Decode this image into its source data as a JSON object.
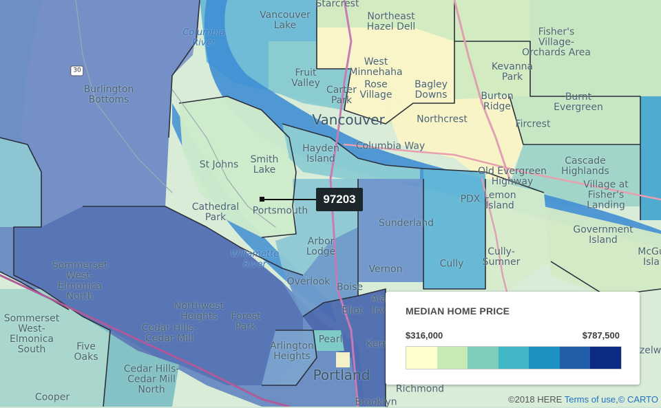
{
  "tooltip": {
    "zip": "97203"
  },
  "legend": {
    "title": "MEDIAN HOME PRICE",
    "min_label": "$316,000",
    "max_label": "$787,500",
    "colors": [
      "#ffffcc",
      "#c7e9b4",
      "#7fcdbb",
      "#41b6c4",
      "#1d91c0",
      "#225ea8",
      "#0c2c84"
    ]
  },
  "attribution": {
    "copyright": "©2018 HERE",
    "terms_label": "Terms of use",
    "separator": ",",
    "carto_label": "© CARTO"
  },
  "labels": [
    {
      "text": "Starcrest",
      "type": "place"
    },
    {
      "text": "Northeast\nHazel Dell",
      "type": "place"
    },
    {
      "text": "Vancouver\nLake",
      "type": "place"
    },
    {
      "text": "Columbia\nRiver",
      "type": "water"
    },
    {
      "text": "Fisher's\nVillage-\nOrchards Area",
      "type": "place"
    },
    {
      "text": "30",
      "type": "shield"
    },
    {
      "text": "West\nMinnehaha",
      "type": "place"
    },
    {
      "text": "Kevanna\nPark",
      "type": "place"
    },
    {
      "text": "Fruit\nValley",
      "type": "place"
    },
    {
      "text": "Rose\nVillage",
      "type": "place"
    },
    {
      "text": "Bagley\nDowns",
      "type": "place"
    },
    {
      "text": "Carter\nPark",
      "type": "place"
    },
    {
      "text": "Burton\nRidge",
      "type": "place"
    },
    {
      "text": "Burnt\nEvergreen",
      "type": "place"
    },
    {
      "text": "Burlington\nBottoms",
      "type": "place"
    },
    {
      "text": "Vancouver",
      "type": "city"
    },
    {
      "text": "Northcrest",
      "type": "place"
    },
    {
      "text": "Fircrest",
      "type": "place"
    },
    {
      "text": "Columbia Way",
      "type": "place"
    },
    {
      "text": "Hayden\nIsland",
      "type": "place"
    },
    {
      "text": "Cascade\nHighlands",
      "type": "place"
    },
    {
      "text": "St Johns",
      "type": "place"
    },
    {
      "text": "Smith\nLake",
      "type": "place"
    },
    {
      "text": "Old Evergreen\nHighway",
      "type": "place"
    },
    {
      "text": "Village at\nFisher's\nLanding",
      "type": "place"
    },
    {
      "text": "PDX",
      "type": "place"
    },
    {
      "text": "Lemon\nIsland",
      "type": "place"
    },
    {
      "text": "Cathedral\nPark",
      "type": "place"
    },
    {
      "text": "Portsmouth",
      "type": "place"
    },
    {
      "text": "Sunderland",
      "type": "place"
    },
    {
      "text": "Government\nIsland",
      "type": "place"
    },
    {
      "text": "McGu\nIsla",
      "type": "place"
    },
    {
      "text": "Arbor\nLodge",
      "type": "place"
    },
    {
      "text": "Willamette\nRiver",
      "type": "water"
    },
    {
      "text": "Cully",
      "type": "place"
    },
    {
      "text": "Cully-\nSumner",
      "type": "place"
    },
    {
      "text": "Sommerset\nWest-\nElmonica\nNorth",
      "type": "place"
    },
    {
      "text": "Vernon",
      "type": "place"
    },
    {
      "text": "Overlook",
      "type": "place"
    },
    {
      "text": "Boise",
      "type": "place"
    },
    {
      "text": "Ala",
      "type": "place"
    },
    {
      "text": "Eliot",
      "type": "place"
    },
    {
      "text": "Irv",
      "type": "place"
    },
    {
      "text": "Northwest\nHeights",
      "type": "place"
    },
    {
      "text": "Forest\nPark",
      "type": "place"
    },
    {
      "text": "Cedar Hills-\nCedar Mill",
      "type": "place"
    },
    {
      "text": "Sommerset\nWest-\nElmonica\nSouth",
      "type": "place"
    },
    {
      "text": "Five\nOaks",
      "type": "place"
    },
    {
      "text": "Arlington\nHeights",
      "type": "place"
    },
    {
      "text": "Pearl",
      "type": "place"
    },
    {
      "text": "Kern",
      "type": "place"
    },
    {
      "text": "Cedar Hills-\nCedar Mill\nNorth",
      "type": "place"
    },
    {
      "text": "Portland",
      "type": "city"
    },
    {
      "text": "Richmond",
      "type": "place"
    },
    {
      "text": "Cooper",
      "type": "place"
    },
    {
      "text": "Brooklyn",
      "type": "place"
    },
    {
      "text": "Hazelwood",
      "type": "place"
    }
  ]
}
